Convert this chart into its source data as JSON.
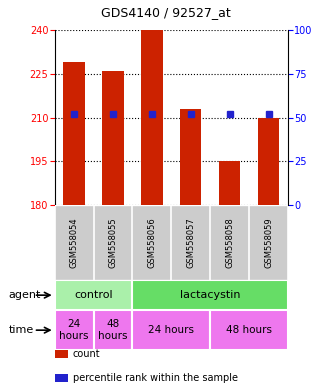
{
  "title": "GDS4140 / 92527_at",
  "samples": [
    "GSM558054",
    "GSM558055",
    "GSM558056",
    "GSM558057",
    "GSM558058",
    "GSM558059"
  ],
  "bar_values": [
    229,
    226,
    240,
    213,
    195,
    210
  ],
  "bar_bottom": 180,
  "ylim_left": [
    180,
    240
  ],
  "ylim_right": [
    0,
    100
  ],
  "yticks_left": [
    180,
    195,
    210,
    225,
    240
  ],
  "yticks_right": [
    0,
    25,
    50,
    75,
    100
  ],
  "bar_color": "#cc2200",
  "percentile_color": "#2222cc",
  "bar_width": 0.55,
  "percentile_positions": [
    52,
    52,
    52,
    52,
    52,
    52
  ],
  "agent_groups": [
    {
      "label": "control",
      "start": 0,
      "end": 2,
      "color": "#aaf0aa"
    },
    {
      "label": "lactacystin",
      "start": 2,
      "end": 6,
      "color": "#66dd66"
    }
  ],
  "time_groups": [
    {
      "label": "24\nhours",
      "start": 0,
      "end": 1,
      "color": "#ee77ee"
    },
    {
      "label": "48\nhours",
      "start": 1,
      "end": 2,
      "color": "#ee77ee"
    },
    {
      "label": "24 hours",
      "start": 2,
      "end": 4,
      "color": "#ee77ee"
    },
    {
      "label": "48 hours",
      "start": 4,
      "end": 6,
      "color": "#ee77ee"
    }
  ],
  "sample_bg": "#cccccc",
  "legend_count_color": "#cc2200",
  "legend_percentile_color": "#2222cc",
  "background_color": "#ffffff"
}
